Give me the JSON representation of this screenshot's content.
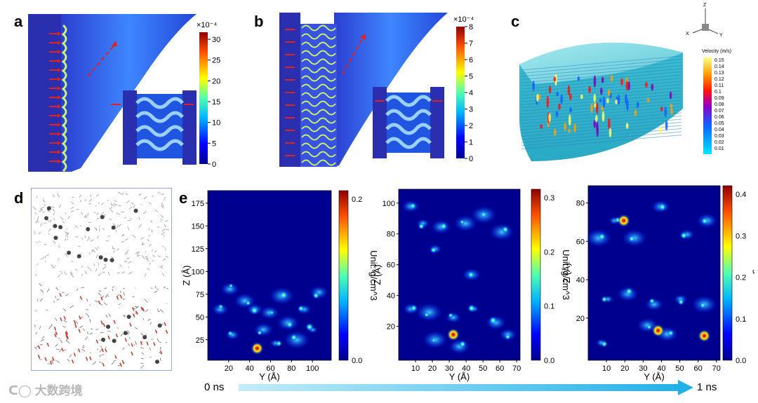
{
  "panels": {
    "a": {
      "label": "a",
      "colorbar": {
        "exponent": "×10⁻⁴",
        "ticks": [
          "30",
          "25",
          "20",
          "15",
          "10",
          "5",
          "0"
        ],
        "max": 32
      }
    },
    "b": {
      "label": "b",
      "colorbar": {
        "exponent": "×10⁻⁴",
        "ticks": [
          "8",
          "7",
          "6",
          "5",
          "4",
          "3",
          "2",
          "1",
          "0"
        ],
        "max": 8
      }
    },
    "c": {
      "label": "c",
      "axes_triad": {
        "z": "Z",
        "x": "X",
        "y": "Y"
      },
      "legend_title": "Velocity (m/s)",
      "legend_values": [
        "0.15",
        "0.14",
        "0.13",
        "0.12",
        "0.11",
        "0.1",
        "0.09",
        "0.08",
        "0.07",
        "0.06",
        "0.05",
        "0.04",
        "0.03",
        "0.02",
        "0.01"
      ]
    },
    "d": {
      "label": "d"
    },
    "e": {
      "label": "e",
      "colorbar_label": "Unit: g/cm^3",
      "maps": [
        {
          "xlabel": "Y (Å)",
          "ylabel": "Z (Å)",
          "xticks": [
            "20",
            "40",
            "60",
            "80",
            "100"
          ],
          "yticks": [
            "175",
            "150",
            "125",
            "100",
            "75",
            "50",
            "25"
          ],
          "cbticks": [
            "0.2",
            "0.0"
          ]
        },
        {
          "xlabel": "Y (Å)",
          "ylabel": "Z (Å)",
          "xticks": [
            "10",
            "20",
            "30",
            "40",
            "50",
            "60",
            "70"
          ],
          "yticks": [
            "100",
            "80",
            "60",
            "40",
            "20"
          ],
          "cbticks": [
            "0.3",
            "0.2",
            "0.1",
            "0.0"
          ]
        },
        {
          "xlabel": "Y (Å)",
          "ylabel": "Z (Å)",
          "xticks": [
            "10",
            "20",
            "30",
            "40",
            "50",
            "60",
            "70"
          ],
          "yticks": [
            "80",
            "60",
            "40",
            "20"
          ],
          "cbticks": [
            "0.4",
            "0.3",
            "0.2",
            "0.1",
            "0.0"
          ]
        }
      ]
    }
  },
  "timeline": {
    "start": "0 ns",
    "end": "1 ns"
  },
  "watermark": "大数跨境",
  "colors": {
    "arrow_red": "#e0211d",
    "timeline_arrow": "#27b6e8",
    "heat_bg": "#00008f"
  }
}
